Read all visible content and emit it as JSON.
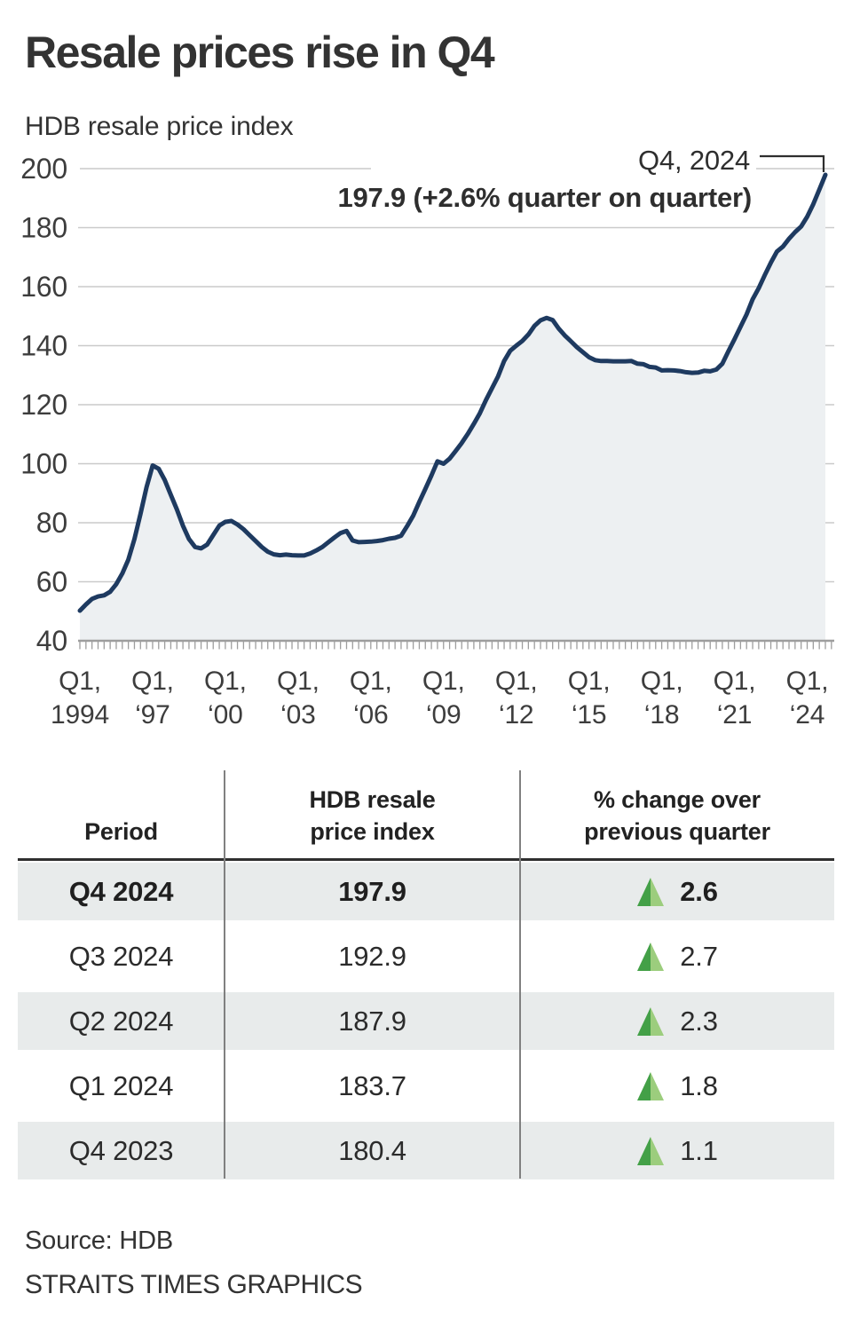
{
  "title": "Resale prices rise in Q4",
  "subtitle": "HDB resale price index",
  "annotation": {
    "label": "Q4, 2024",
    "value_text": "197.9 (+2.6% quarter on quarter)"
  },
  "chart_data": {
    "type": "area",
    "title": "HDB resale price index",
    "frequency": "quarterly",
    "x_start": "Q1 1994",
    "x_end": "Q4 2024",
    "ylim": [
      40,
      200
    ],
    "grid_on": true,
    "legend": "none",
    "y_ticks": [
      40,
      60,
      80,
      100,
      120,
      140,
      160,
      180,
      200
    ],
    "x_tick_labels": [
      {
        "line1": "Q1,",
        "line2": "1994",
        "quarter_index": 0
      },
      {
        "line1": "Q1,",
        "line2": "‘97",
        "quarter_index": 12
      },
      {
        "line1": "Q1,",
        "line2": "‘00",
        "quarter_index": 24
      },
      {
        "line1": "Q1,",
        "line2": "‘03",
        "quarter_index": 36
      },
      {
        "line1": "Q1,",
        "line2": "‘06",
        "quarter_index": 48
      },
      {
        "line1": "Q1,",
        "line2": "‘09",
        "quarter_index": 60
      },
      {
        "line1": "Q1,",
        "line2": "‘12",
        "quarter_index": 72
      },
      {
        "line1": "Q1,",
        "line2": "‘15",
        "quarter_index": 84
      },
      {
        "line1": "Q1,",
        "line2": "‘18",
        "quarter_index": 96
      },
      {
        "line1": "Q1,",
        "line2": "‘21",
        "quarter_index": 108
      },
      {
        "line1": "Q1,",
        "line2": "‘24",
        "quarter_index": 120
      }
    ],
    "values": [
      50.2,
      52.3,
      54.2,
      55.0,
      55.4,
      56.6,
      59.2,
      62.8,
      67.5,
      74.5,
      83.0,
      92.0,
      99.4,
      98.3,
      94.5,
      89.5,
      84.5,
      79.0,
      74.5,
      71.8,
      71.3,
      72.6,
      75.8,
      79.0,
      80.3,
      80.6,
      79.4,
      77.8,
      75.8,
      73.8,
      71.8,
      70.2,
      69.3,
      69.0,
      69.2,
      69.0,
      68.9,
      68.9,
      69.6,
      70.6,
      71.8,
      73.4,
      75.0,
      76.5,
      77.2,
      74.0,
      73.4,
      73.5,
      73.6,
      73.8,
      74.1,
      74.6,
      74.9,
      75.6,
      78.9,
      82.4,
      87.0,
      91.5,
      96.0,
      100.8,
      100.0,
      101.7,
      104.3,
      107.0,
      110.1,
      113.5,
      117.1,
      121.6,
      125.6,
      129.6,
      134.8,
      138.3,
      140.0,
      141.6,
      143.8,
      146.7,
      148.6,
      149.4,
      148.7,
      145.8,
      143.5,
      141.5,
      139.5,
      137.8,
      136.1,
      135.1,
      134.8,
      134.8,
      134.7,
      134.7,
      134.7,
      134.8,
      133.9,
      133.7,
      132.8,
      132.6,
      131.6,
      131.7,
      131.6,
      131.4,
      131.0,
      130.8,
      130.9,
      131.5,
      131.3,
      131.9,
      133.9,
      138.1,
      142.2,
      146.4,
      150.6,
      155.7,
      159.5,
      163.9,
      168.1,
      171.9,
      173.6,
      176.2,
      178.5,
      180.4,
      183.7,
      187.9,
      192.9,
      197.9
    ]
  },
  "table": {
    "headers": [
      {
        "line1": "Period",
        "line2": ""
      },
      {
        "line1": "HDB resale",
        "line2": "price index"
      },
      {
        "line1": "% change over",
        "line2": "previous quarter"
      }
    ],
    "rows": [
      {
        "period": "Q4 2024",
        "index": "197.9",
        "change": "2.6",
        "direction": "up",
        "emphasis": true
      },
      {
        "period": "Q3 2024",
        "index": "192.9",
        "change": "2.7",
        "direction": "up",
        "emphasis": false
      },
      {
        "period": "Q2 2024",
        "index": "187.9",
        "change": "2.3",
        "direction": "up",
        "emphasis": false
      },
      {
        "period": "Q1 2024",
        "index": "183.7",
        "change": "1.8",
        "direction": "up",
        "emphasis": false
      },
      {
        "period": "Q4 2023",
        "index": "180.4",
        "change": "1.1",
        "direction": "up",
        "emphasis": false
      }
    ]
  },
  "footer": {
    "source": "Source: HDB",
    "credit": "STRAITS TIMES GRAPHICS"
  },
  "colors": {
    "line": "#1e3a60",
    "area_fill": "#edf0f2",
    "grid": "#cacaca",
    "axis": "#9e9e9e",
    "axis_text": "#3d3d3d",
    "annotation_text": "#2e2e2e",
    "row_stripe": "#e8ebeb",
    "triangle_dark": "#43a047",
    "triangle_light": "#9ccd7d"
  }
}
